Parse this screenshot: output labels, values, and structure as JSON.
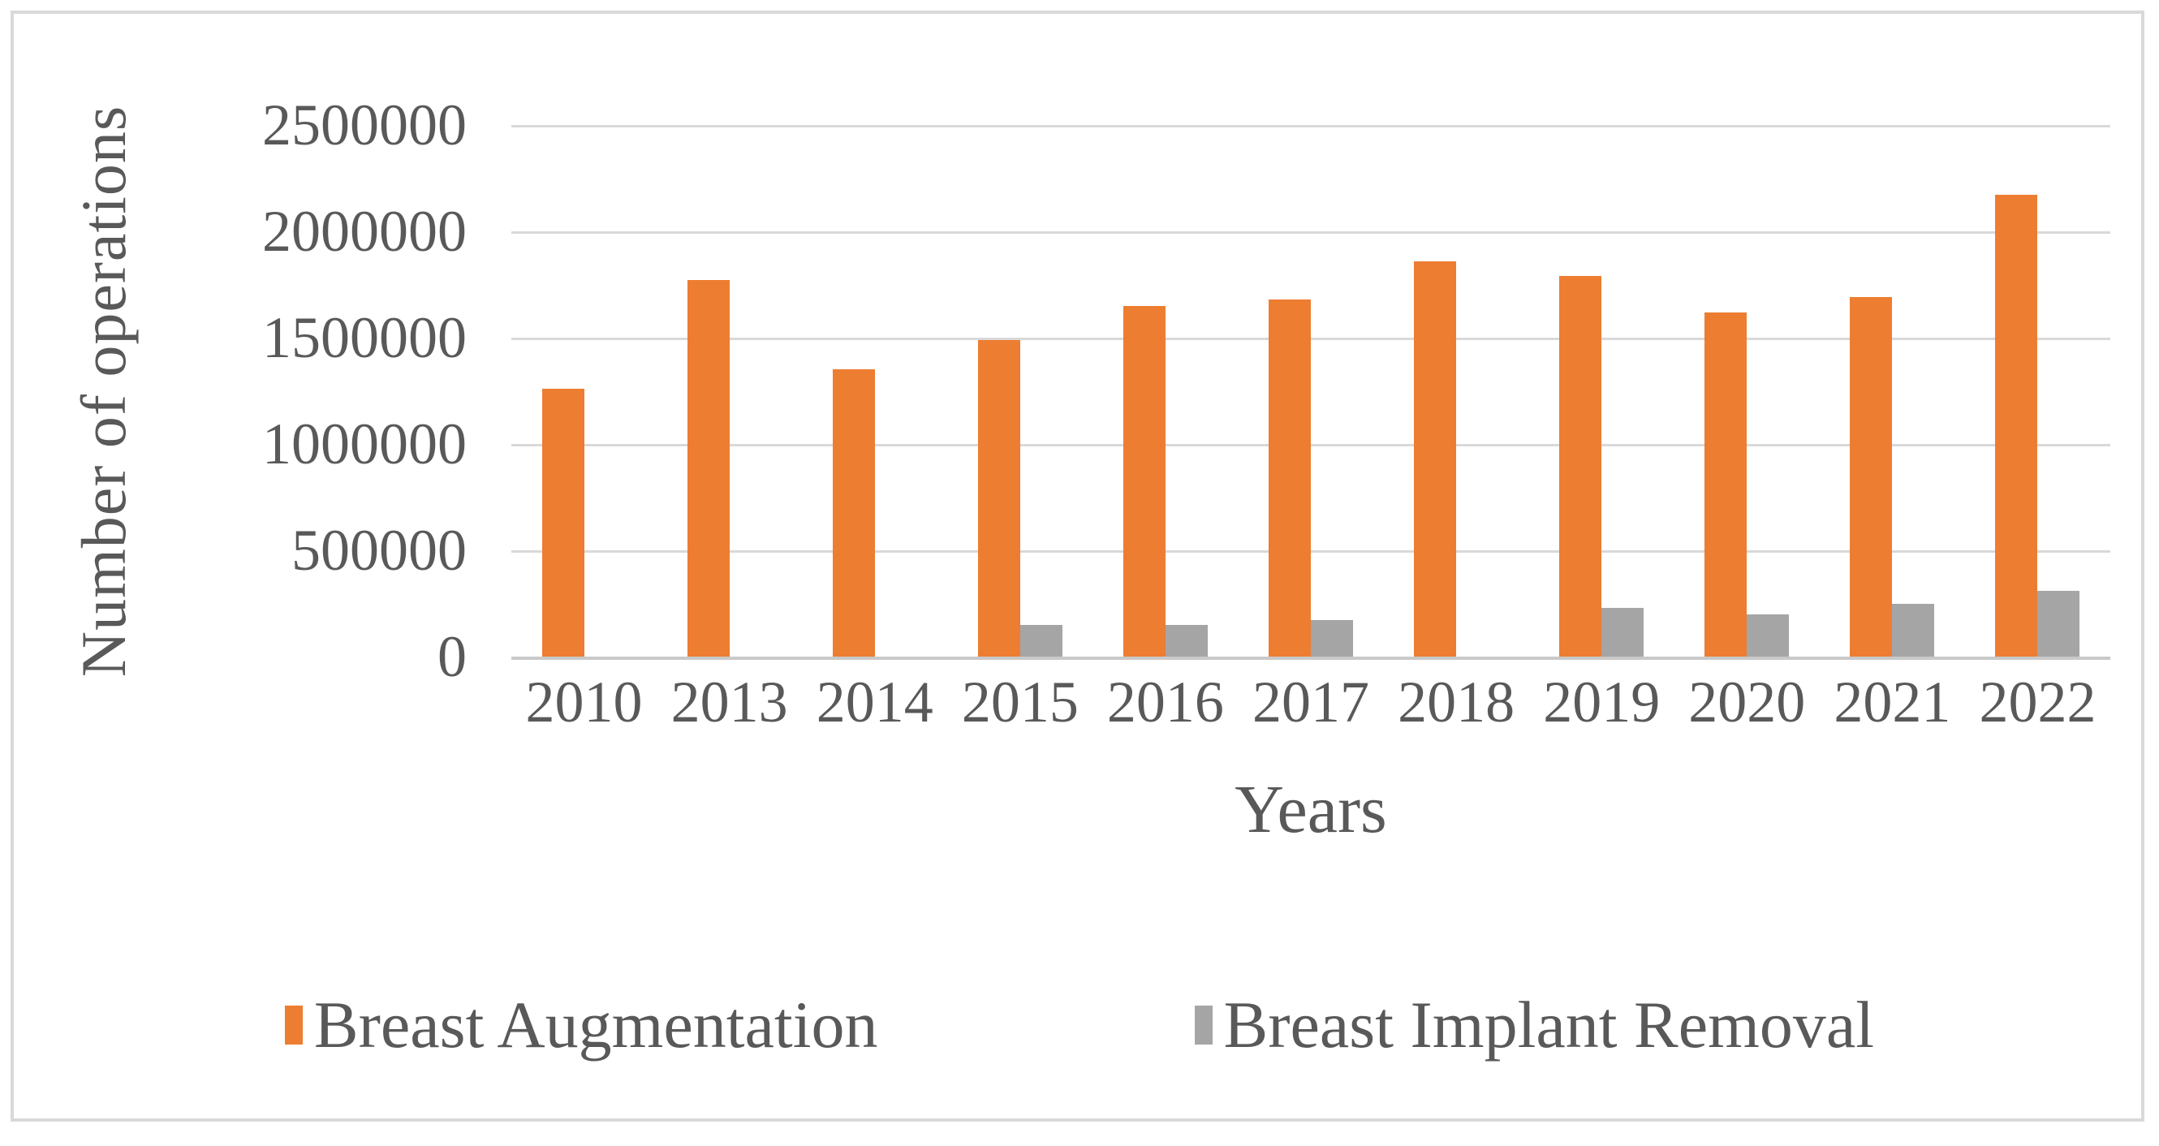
{
  "style": {
    "text_color": "#595959",
    "gridline_color": "#d9d9d9",
    "background_color": "#ffffff"
  },
  "chart_data": {
    "type": "bar",
    "title": "",
    "categories": [
      "2010",
      "2013",
      "2014",
      "2015",
      "2016",
      "2017",
      "2018",
      "2019",
      "2020",
      "2021",
      "2022"
    ],
    "series": [
      {
        "name": "Breast Augmentation",
        "color": "#ED7D31",
        "values": [
          1260000,
          1770000,
          1350000,
          1490000,
          1650000,
          1680000,
          1860000,
          1790000,
          1620000,
          1690000,
          2170000
        ]
      },
      {
        "name": "Breast Implant Removal",
        "color": "#A5A5A5",
        "values": [
          0,
          0,
          0,
          150000,
          150000,
          170000,
          0,
          230000,
          200000,
          250000,
          310000
        ]
      }
    ],
    "xlabel": "Years",
    "ylabel": "Number of operations",
    "ylim": [
      0,
      2500000
    ],
    "ytick_interval": 500000,
    "yticks": [
      "2500000",
      "2000000",
      "1500000",
      "1000000",
      "500000",
      "0"
    ],
    "grid": "horizontal-only",
    "legend_position": "bottom"
  }
}
